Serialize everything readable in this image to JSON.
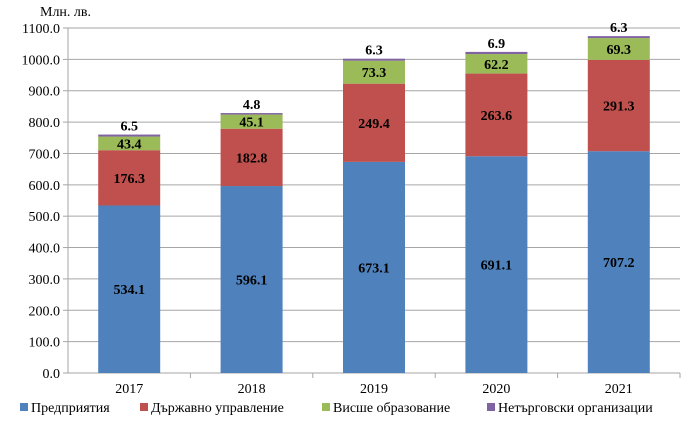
{
  "chart_data": {
    "type": "bar",
    "stacked": true,
    "title": "",
    "ylabel": "Млн. лв.",
    "xlabel": "",
    "ylim": [
      0,
      1100
    ],
    "yticks": [
      "0.0",
      "100.0",
      "200.0",
      "300.0",
      "400.0",
      "500.0",
      "600.0",
      "700.0",
      "800.0",
      "900.0",
      "1000.0",
      "1100.0"
    ],
    "grid": true,
    "legend_position": "bottom",
    "categories": [
      "2017",
      "2018",
      "2019",
      "2020",
      "2021"
    ],
    "series": [
      {
        "name": "Предприятия",
        "color": "#4f81bd",
        "values": [
          534.1,
          596.1,
          673.1,
          691.1,
          707.2
        ]
      },
      {
        "name": "Държавно управление",
        "color": "#c0504d",
        "values": [
          176.3,
          182.8,
          249.4,
          263.6,
          291.3
        ]
      },
      {
        "name": "Висше образование",
        "color": "#9bbb59",
        "values": [
          43.4,
          45.1,
          73.3,
          62.2,
          69.3
        ]
      },
      {
        "name": "Нетърговски организации",
        "color": "#8064a2",
        "values": [
          6.5,
          4.8,
          6.3,
          6.9,
          6.3
        ]
      }
    ]
  }
}
